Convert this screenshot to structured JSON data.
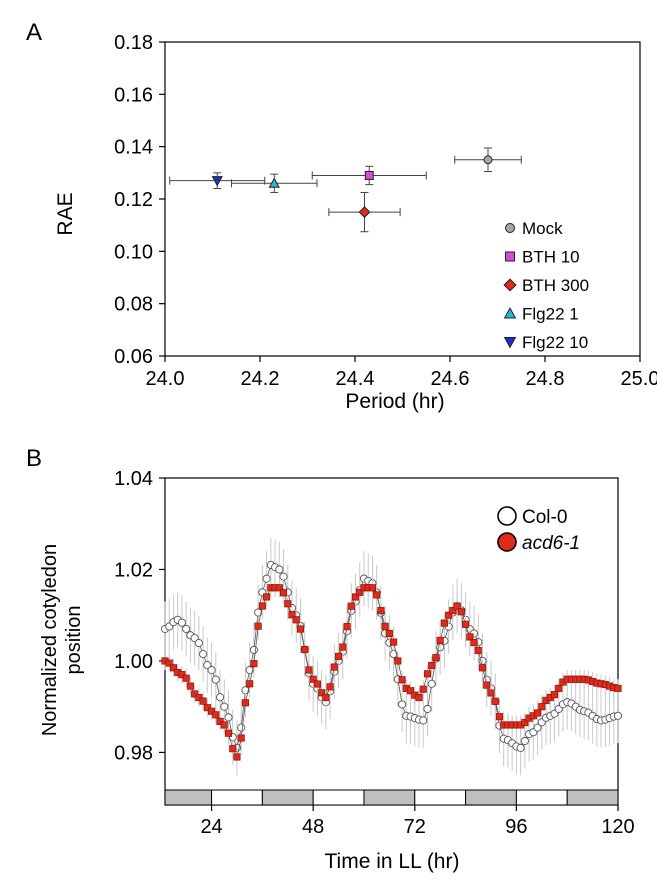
{
  "chart_data": [
    {
      "panel_label": "A",
      "type": "scatter",
      "xlabel": "Period (hr)",
      "ylabel": "RAE",
      "xlim": [
        24.0,
        25.0
      ],
      "ylim": [
        0.06,
        0.18
      ],
      "x_ticks": [
        "24.0",
        "24.2",
        "24.4",
        "24.6",
        "24.8",
        "25.0"
      ],
      "y_ticks": [
        "0.06",
        "0.08",
        "0.10",
        "0.12",
        "0.14",
        "0.16",
        "0.18"
      ],
      "grid": false,
      "legend_position": "bottom-right",
      "series": [
        {
          "name": "Mock",
          "marker": "circle",
          "color": "#a6a6a6",
          "x": 24.68,
          "y": 0.135,
          "x_err": 0.07,
          "y_err": 0.0045
        },
        {
          "name": "BTH 10",
          "marker": "square",
          "color": "#d24fd2",
          "x": 24.43,
          "y": 0.129,
          "x_err": 0.12,
          "y_err": 0.0035
        },
        {
          "name": "BTH 300",
          "marker": "diamond",
          "color": "#e02a1c",
          "x": 24.42,
          "y": 0.115,
          "x_err": 0.075,
          "y_err": 0.0075
        },
        {
          "name": "Flg22 1",
          "marker": "triangle-up",
          "color": "#2bb5d6",
          "x": 24.23,
          "y": 0.126,
          "x_err": 0.09,
          "y_err": 0.0035
        },
        {
          "name": "Flg22 10",
          "marker": "triangle-down",
          "color": "#1f2fc8",
          "x": 24.11,
          "y": 0.127,
          "x_err": 0.1,
          "y_err": 0.003
        }
      ]
    },
    {
      "panel_label": "B",
      "type": "line",
      "xlabel": "Time in LL (hr)",
      "ylabel": "Normalized cotyledon position",
      "xlim": [
        13,
        120
      ],
      "ylim": [
        0.972,
        1.04
      ],
      "x_ticks": [
        "24",
        "48",
        "72",
        "96",
        "120"
      ],
      "y_ticks": [
        "0.98",
        "1.00",
        "1.02",
        "1.04"
      ],
      "grid": false,
      "legend_position": "top-right",
      "light_dark_bar": [
        {
          "start": 13,
          "end": 24,
          "phase": "subjective night"
        },
        {
          "start": 24,
          "end": 36,
          "phase": "subjective day"
        },
        {
          "start": 36,
          "end": 48,
          "phase": "subjective night"
        },
        {
          "start": 48,
          "end": 60,
          "phase": "subjective day"
        },
        {
          "start": 60,
          "end": 72,
          "phase": "subjective night"
        },
        {
          "start": 72,
          "end": 84,
          "phase": "subjective day"
        },
        {
          "start": 84,
          "end": 96,
          "phase": "subjective night"
        },
        {
          "start": 96,
          "end": 108,
          "phase": "subjective day"
        },
        {
          "start": 108,
          "end": 120,
          "phase": "subjective night"
        }
      ],
      "series": [
        {
          "name": "Col-0",
          "marker": "open-circle",
          "color": "#ffffff",
          "keypoints": [
            [
              13,
              1.007
            ],
            [
              16,
              1.009
            ],
            [
              20,
              1.005
            ],
            [
              24,
              0.998
            ],
            [
              27,
              0.99
            ],
            [
              30,
              0.981
            ],
            [
              33,
              0.998
            ],
            [
              36,
              1.015
            ],
            [
              38,
              1.021
            ],
            [
              40,
              1.02
            ],
            [
              44,
              1.01
            ],
            [
              48,
              0.995
            ],
            [
              51,
              0.991
            ],
            [
              54,
              1.0
            ],
            [
              58,
              1.013
            ],
            [
              60,
              1.018
            ],
            [
              62,
              1.017
            ],
            [
              66,
              1.004
            ],
            [
              70,
              0.988
            ],
            [
              74,
              0.987
            ],
            [
              78,
              1.003
            ],
            [
              82,
              1.012
            ],
            [
              86,
              1.006
            ],
            [
              90,
              0.994
            ],
            [
              93,
              0.983
            ],
            [
              97,
              0.981
            ],
            [
              99,
              0.984
            ],
            [
              104,
              0.988
            ],
            [
              108,
              0.991
            ],
            [
              112,
              0.989
            ],
            [
              116,
              0.987
            ],
            [
              120,
              0.988
            ]
          ],
          "error": 0.006
        },
        {
          "name": "acd6-1",
          "marker": "filled-square",
          "color": "#e02a1c",
          "keypoints": [
            [
              13,
              1.0
            ],
            [
              17,
              0.997
            ],
            [
              21,
              0.992
            ],
            [
              24,
              0.989
            ],
            [
              27,
              0.986
            ],
            [
              30,
              0.979
            ],
            [
              33,
              0.995
            ],
            [
              36,
              1.012
            ],
            [
              38,
              1.016
            ],
            [
              40,
              1.016
            ],
            [
              44,
              1.009
            ],
            [
              48,
              0.996
            ],
            [
              51,
              0.992
            ],
            [
              54,
              1.001
            ],
            [
              58,
              1.014
            ],
            [
              60,
              1.016
            ],
            [
              62,
              1.016
            ],
            [
              66,
              1.006
            ],
            [
              70,
              0.994
            ],
            [
              73,
              0.992
            ],
            [
              76,
              0.999
            ],
            [
              80,
              1.01
            ],
            [
              82,
              1.012
            ],
            [
              86,
              1.004
            ],
            [
              90,
              0.993
            ],
            [
              93,
              0.986
            ],
            [
              97,
              0.986
            ],
            [
              100,
              0.988
            ],
            [
              104,
              0.992
            ],
            [
              108,
              0.996
            ],
            [
              112,
              0.996
            ],
            [
              116,
              0.995
            ],
            [
              120,
              0.994
            ]
          ],
          "error": 0.002
        }
      ]
    }
  ]
}
